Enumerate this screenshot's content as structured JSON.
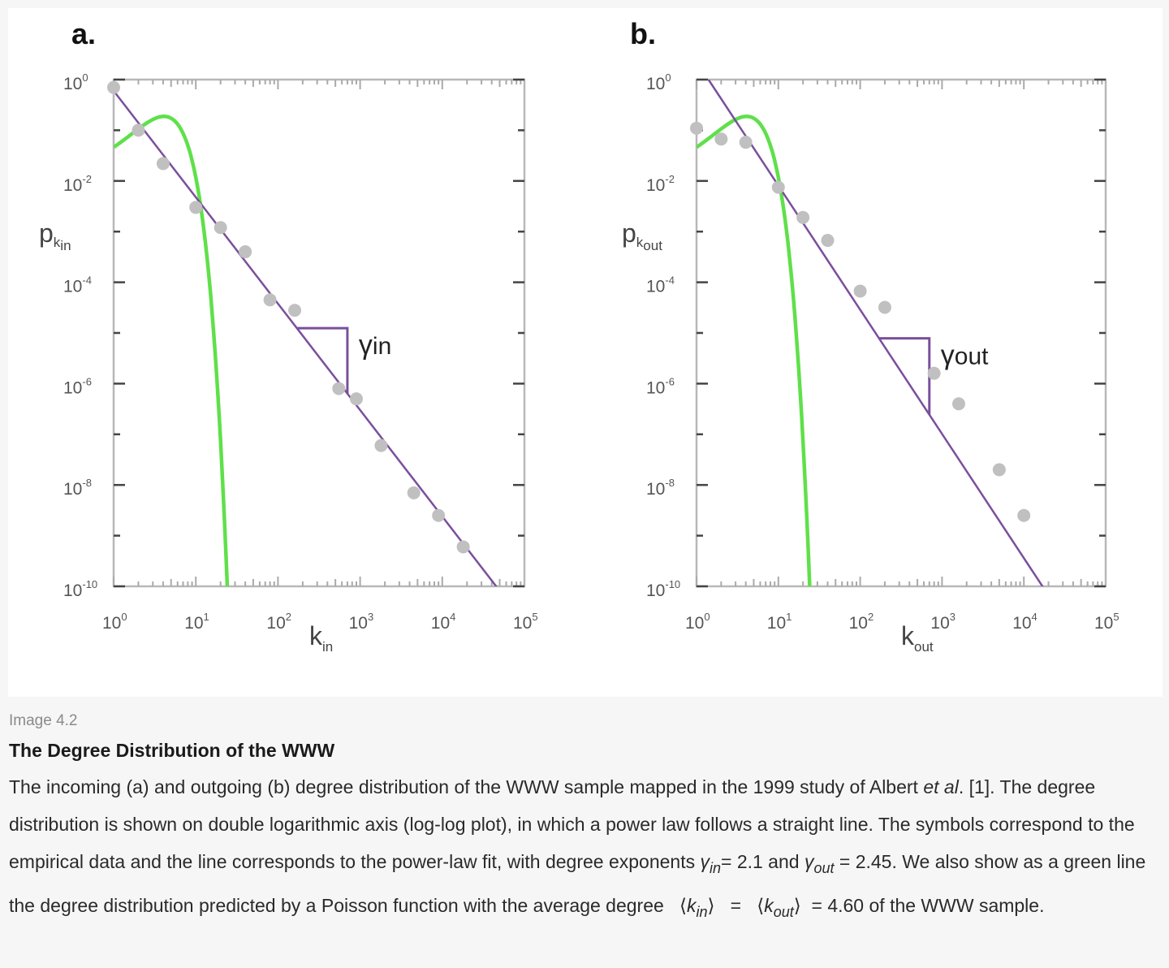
{
  "chart_data": [
    {
      "type": "scatter",
      "panel_label": "a.",
      "xlabel": "k",
      "xlabel_sub": "in",
      "ylabel": "p",
      "ylabel_sub_k": "k",
      "ylabel_sub": "in",
      "x_scale": "log",
      "y_scale": "log",
      "xlim": [
        1,
        100000
      ],
      "ylim": [
        1e-10,
        1
      ],
      "x_ticks": [
        {
          "base": "10",
          "exp": "0"
        },
        {
          "base": "10",
          "exp": "1"
        },
        {
          "base": "10",
          "exp": "2"
        },
        {
          "base": "10",
          "exp": "3"
        },
        {
          "base": "10",
          "exp": "4"
        },
        {
          "base": "10",
          "exp": "5"
        }
      ],
      "y_ticks": [
        {
          "base": "10",
          "exp": "0"
        },
        {
          "base": "10",
          "exp": "-2"
        },
        {
          "base": "10",
          "exp": "-4"
        },
        {
          "base": "10",
          "exp": "-6"
        },
        {
          "base": "10",
          "exp": "-8"
        },
        {
          "base": "10",
          "exp": "-10"
        }
      ],
      "grid": false,
      "exponent_label": "γ",
      "exponent_sub": "in",
      "series": [
        {
          "kind": "points",
          "color": "#c0c0c0",
          "x": [
            1,
            2,
            4,
            10,
            20,
            40,
            80,
            160,
            550,
            900,
            1800,
            4500,
            9000,
            18000
          ],
          "y": [
            0.7,
            0.1,
            0.022,
            0.003,
            0.0012,
            0.0004,
            4.5e-05,
            2.8e-05,
            8e-07,
            5e-07,
            6e-08,
            7e-09,
            2.5e-09,
            6e-10
          ]
        },
        {
          "kind": "power-law",
          "color": "#7a4f9c",
          "gamma": 2.1,
          "x_range": [
            1,
            55000
          ]
        },
        {
          "kind": "poisson",
          "color": "#5fe04a",
          "mean": 4.6
        }
      ]
    },
    {
      "type": "scatter",
      "panel_label": "b.",
      "xlabel": "k",
      "xlabel_sub": "out",
      "ylabel": "p",
      "ylabel_sub_k": "k",
      "ylabel_sub": "out",
      "x_scale": "log",
      "y_scale": "log",
      "xlim": [
        1,
        100000
      ],
      "ylim": [
        1e-10,
        1
      ],
      "x_ticks": [
        {
          "base": "10",
          "exp": "0"
        },
        {
          "base": "10",
          "exp": "1"
        },
        {
          "base": "10",
          "exp": "2"
        },
        {
          "base": "10",
          "exp": "3"
        },
        {
          "base": "10",
          "exp": "4"
        },
        {
          "base": "10",
          "exp": "5"
        }
      ],
      "y_ticks": [
        {
          "base": "10",
          "exp": "0"
        },
        {
          "base": "10",
          "exp": "-2"
        },
        {
          "base": "10",
          "exp": "-4"
        },
        {
          "base": "10",
          "exp": "-6"
        },
        {
          "base": "10",
          "exp": "-8"
        },
        {
          "base": "10",
          "exp": "-10"
        }
      ],
      "grid": false,
      "exponent_label": "γ",
      "exponent_sub": "out",
      "series": [
        {
          "kind": "points",
          "color": "#c0c0c0",
          "x": [
            1,
            2,
            4,
            10,
            20,
            40,
            100,
            200,
            800,
            1600,
            5000,
            10000
          ],
          "y": [
            0.11,
            0.067,
            0.058,
            0.0075,
            0.0019,
            0.00067,
            6.7e-05,
            3.2e-05,
            1.6e-06,
            4e-07,
            2e-08,
            2.5e-09
          ]
        },
        {
          "kind": "power-law",
          "color": "#7a4f9c",
          "gamma": 2.45,
          "x_range": [
            1.4,
            36000
          ]
        },
        {
          "kind": "poisson",
          "color": "#5fe04a",
          "mean": 4.6
        }
      ]
    }
  ],
  "caption": {
    "label": "Image 4.2",
    "title": "The Degree Distribution of the WWW",
    "line1_a": "The incoming (a) and outgoing (b) degree distribution of the WWW sample mapped in the 1999 study of Albert ",
    "line1_etal": "et al",
    "line1_b": ". [1]. The degree distribution is shown on double logarithmic axis (log-log plot), in which a power law follows a straight line. The symbols correspond to the empirical data and the line corresponds to the power-law fit, with degree exponents ",
    "gamma_sym": "γ",
    "in_sub": "in",
    "out_sub": "out",
    "gamma_in_val": "= 2.1",
    "and_word": " and ",
    "gamma_out_val": " = 2.45. We also show as a green line the degree distribution predicted by a Poisson function with the average degree ",
    "k_sym": "k",
    "lang": "⟨",
    "rang": "⟩",
    "equals": " = ",
    "end_text": " = 4.60 of the WWW sample."
  }
}
